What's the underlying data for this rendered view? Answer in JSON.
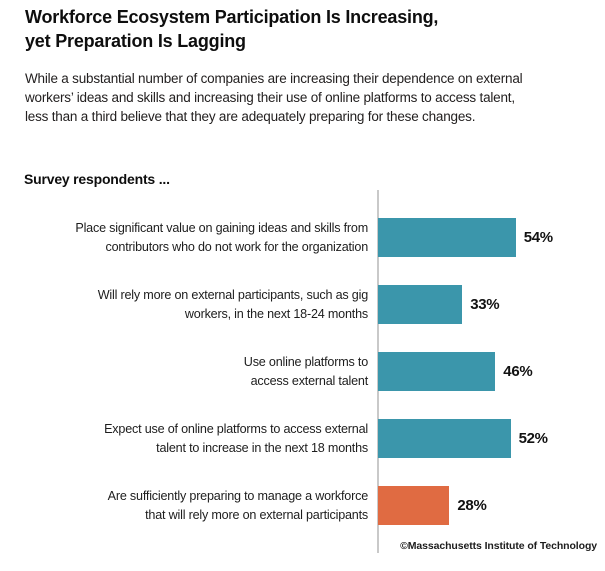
{
  "header": {
    "title": "Workforce Ecosystem Participation Is Increasing,\nyet Preparation Is Lagging",
    "subtitle": "While a substantial number of companies are increasing their dependence on external\nworkers’ ideas and skills and increasing their use of online platforms to access talent,\nless than a third believe that they are adequately preparing for these changes."
  },
  "chart_data": {
    "type": "bar",
    "orientation": "horizontal",
    "section_label": "Survey respondents ...",
    "categories": [
      "Place significant value on gaining ideas and skills from\ncontributors who do not work for the organization",
      "Will rely more on external participants, such as gig\nworkers, in the next 18-24 months",
      "Use online platforms to\naccess external talent",
      "Expect use of online platforms to access external\ntalent to increase in the next 18 months",
      "Are sufficiently preparing to manage a workforce\nthat will rely more on external participants"
    ],
    "values": [
      54,
      33,
      46,
      52,
      28
    ],
    "value_labels": [
      "54%",
      "33%",
      "46%",
      "52%",
      "28%"
    ],
    "xlim": [
      0,
      89
    ],
    "grid": false,
    "legend": false,
    "colors": {
      "default": "#3b96ab",
      "highlight": "#e06b42",
      "axis": "#c9c9c9"
    },
    "bar_color_keys": [
      "default",
      "default",
      "default",
      "default",
      "highlight"
    ]
  },
  "footer": {
    "copyright": "©Massachusetts Institute of Technology"
  }
}
